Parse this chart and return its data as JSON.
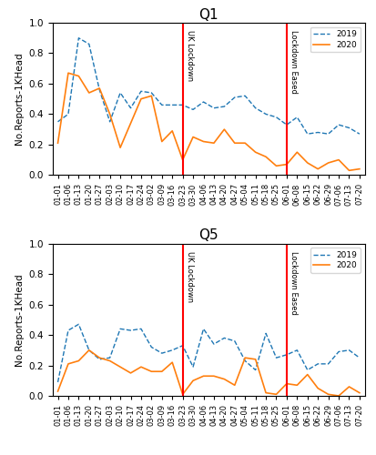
{
  "x_labels": [
    "01-01",
    "01-06",
    "01-13",
    "01-20",
    "01-27",
    "02-03",
    "02-10",
    "02-17",
    "02-24",
    "03-02",
    "03-09",
    "03-16",
    "03-23",
    "03-30",
    "04-06",
    "04-13",
    "04-20",
    "04-27",
    "05-04",
    "05-11",
    "05-18",
    "05-25",
    "06-01",
    "06-08",
    "06-15",
    "06-22",
    "06-29",
    "07-06",
    "07-13",
    "07-20"
  ],
  "Q1_2019": [
    0.35,
    0.4,
    0.9,
    0.86,
    0.56,
    0.35,
    0.54,
    0.44,
    0.55,
    0.54,
    0.46,
    0.46,
    0.46,
    0.43,
    0.48,
    0.44,
    0.45,
    0.51,
    0.52,
    0.44,
    0.4,
    0.38,
    0.33,
    0.38,
    0.27,
    0.28,
    0.27,
    0.33,
    0.31,
    0.27
  ],
  "Q1_2020": [
    0.21,
    0.67,
    0.65,
    0.54,
    0.57,
    0.4,
    0.18,
    0.34,
    0.5,
    0.52,
    0.22,
    0.29,
    0.1,
    0.25,
    0.22,
    0.21,
    0.3,
    0.21,
    0.21,
    0.15,
    0.12,
    0.06,
    0.07,
    0.15,
    0.08,
    0.04,
    0.08,
    0.1,
    0.03,
    0.04
  ],
  "Q5_2019": [
    0.09,
    0.43,
    0.47,
    0.3,
    0.24,
    0.25,
    0.44,
    0.43,
    0.44,
    0.32,
    0.28,
    0.3,
    0.33,
    0.19,
    0.44,
    0.34,
    0.38,
    0.36,
    0.23,
    0.17,
    0.41,
    0.25,
    0.27,
    0.3,
    0.17,
    0.21,
    0.21,
    0.29,
    0.3,
    0.25
  ],
  "Q5_2020": [
    0.03,
    0.21,
    0.23,
    0.3,
    0.25,
    0.23,
    0.19,
    0.15,
    0.19,
    0.16,
    0.16,
    0.22,
    0.01,
    0.1,
    0.13,
    0.13,
    0.11,
    0.07,
    0.25,
    0.24,
    0.02,
    0.01,
    0.08,
    0.07,
    0.14,
    0.05,
    0.01,
    0.0,
    0.06,
    0.02
  ],
  "lockdown_idx": 12,
  "eased_idx": 22,
  "lockdown_label": "UK Lockdown",
  "eased_label": "Lockdown Eased",
  "ylabel": "No.Reports-1KHead",
  "title_q1": "Q1",
  "title_q5": "Q5",
  "ylim": [
    0.0,
    1.0
  ],
  "line_2019_color": "#1f77b4",
  "line_2020_color": "#ff7f0e",
  "vline_color": "red",
  "legend_2019": "2019",
  "legend_2020": "2020",
  "figsize": [
    4.13,
    5.0
  ],
  "dpi": 100
}
